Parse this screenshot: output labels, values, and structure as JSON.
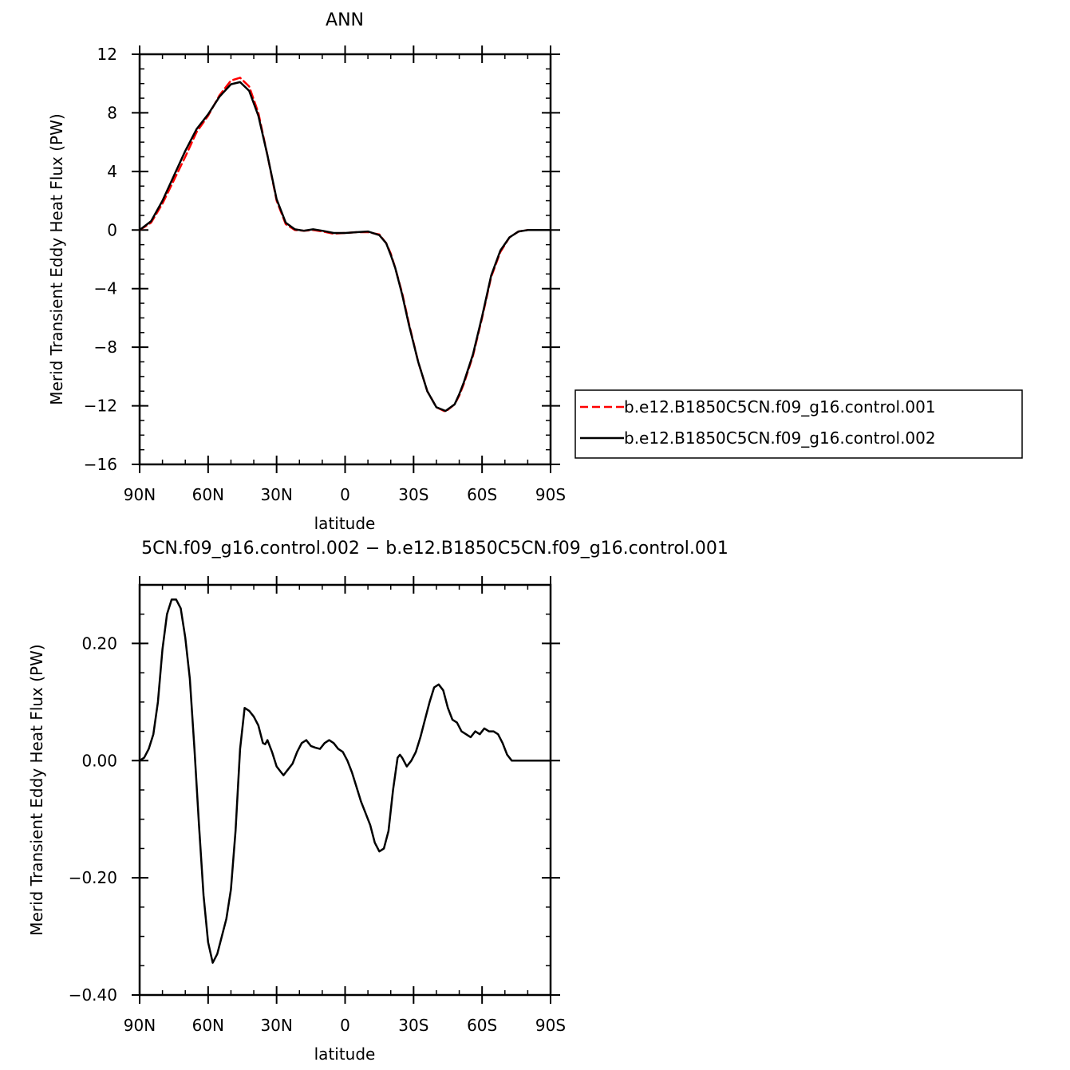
{
  "chart_data": [
    {
      "type": "line",
      "title": "ANN",
      "xlabel": "latitude",
      "ylabel": "Merid Transient Eddy Heat Flux (PW)",
      "xlim": [
        90,
        -90
      ],
      "ylim": [
        -16,
        12
      ],
      "xticks": [
        90,
        60,
        30,
        0,
        -30,
        -60,
        -90
      ],
      "xtick_labels": [
        "90N",
        "60N",
        "30N",
        "0",
        "30S",
        "60S",
        "90S"
      ],
      "yticks": [
        12,
        8,
        4,
        0,
        -4,
        -8,
        -12,
        -16
      ],
      "ytick_labels": [
        "12",
        "8",
        "4",
        "0",
        "−4",
        "−8",
        "−12",
        "−16"
      ],
      "y_minor_step": 1,
      "x_minor_step": 10,
      "legend_position": "right",
      "series": [
        {
          "name": "b.e12.B1850C5CN.f09_g16.control.001",
          "color": "#ff0000",
          "dash": "dashed",
          "x": [
            90,
            85,
            80,
            75,
            70,
            65,
            60,
            55,
            50,
            46,
            42,
            38,
            34,
            30,
            26,
            22,
            18,
            14,
            10,
            5,
            0,
            -5,
            -10,
            -15,
            -18,
            -20,
            -22,
            -25,
            -28,
            -32,
            -36,
            -40,
            -44,
            -48,
            -50,
            -52,
            -56,
            -60,
            -64,
            -68,
            -72,
            -76,
            -80,
            -85,
            -90
          ],
          "y": [
            0,
            0.5,
            1.8,
            3.4,
            5.0,
            6.7,
            7.8,
            9.2,
            10.2,
            10.4,
            9.8,
            8.0,
            5.1,
            2.0,
            0.4,
            0,
            -0.05,
            0,
            -0.1,
            -0.25,
            -0.2,
            -0.15,
            -0.15,
            -0.3,
            -0.9,
            -1.6,
            -2.6,
            -4.3,
            -6.4,
            -9.0,
            -11.0,
            -12.1,
            -12.4,
            -11.9,
            -11.3,
            -10.5,
            -8.6,
            -6.0,
            -3.2,
            -1.5,
            -0.5,
            -0.1,
            0,
            0,
            0
          ]
        },
        {
          "name": "b.e12.B1850C5CN.f09_g16.control.002",
          "color": "#000000",
          "dash": "solid",
          "x": [
            90,
            85,
            80,
            75,
            70,
            65,
            60,
            55,
            50,
            46,
            42,
            38,
            34,
            30,
            26,
            22,
            18,
            14,
            10,
            5,
            0,
            -5,
            -10,
            -15,
            -18,
            -20,
            -22,
            -25,
            -28,
            -32,
            -36,
            -40,
            -44,
            -48,
            -50,
            -52,
            -56,
            -60,
            -64,
            -68,
            -72,
            -76,
            -80,
            -85,
            -90
          ],
          "y": [
            0,
            0.6,
            2.0,
            3.7,
            5.4,
            6.9,
            7.9,
            9.1,
            9.95,
            10.1,
            9.5,
            7.8,
            5.1,
            2.1,
            0.5,
            0.05,
            -0.05,
            0.05,
            -0.05,
            -0.2,
            -0.2,
            -0.15,
            -0.1,
            -0.35,
            -0.9,
            -1.7,
            -2.6,
            -4.4,
            -6.5,
            -9.0,
            -11.0,
            -12.1,
            -12.35,
            -11.9,
            -11.2,
            -10.4,
            -8.5,
            -5.9,
            -3.1,
            -1.4,
            -0.5,
            -0.1,
            0,
            0,
            0
          ]
        }
      ]
    },
    {
      "type": "line",
      "title": "5CN.f09_g16.control.002 − b.e12.B1850C5CN.f09_g16.control.001",
      "xlabel": "latitude",
      "ylabel": "Merid Transient Eddy Heat Flux (PW)",
      "xlim": [
        90,
        -90
      ],
      "ylim": [
        -0.4,
        0.3
      ],
      "xticks": [
        90,
        60,
        30,
        0,
        -30,
        -60,
        -90
      ],
      "xtick_labels": [
        "90N",
        "60N",
        "30N",
        "0",
        "30S",
        "60S",
        "90S"
      ],
      "yticks": [
        0.2,
        0.0,
        -0.2,
        -0.4
      ],
      "ytick_labels": [
        "0.20",
        "0.00",
        "−0.20",
        "−0.40"
      ],
      "y_minor_step": 0.05,
      "x_minor_step": 10,
      "series": [
        {
          "name": "",
          "color": "#000000",
          "dash": "solid",
          "x": [
            90,
            88,
            86,
            84,
            82,
            80,
            78,
            76,
            74,
            72,
            70,
            68,
            66,
            64,
            62,
            60,
            58,
            56,
            54,
            52,
            50,
            48,
            46,
            44,
            42,
            40,
            38,
            36,
            35,
            34,
            32,
            30,
            28,
            27,
            26,
            25,
            23,
            21,
            19,
            17,
            15,
            13,
            11,
            9,
            7,
            5,
            3,
            1,
            -1,
            -3,
            -5,
            -7,
            -9,
            -11,
            -13,
            -15,
            -17,
            -19,
            -21,
            -23,
            -24,
            -25,
            -27,
            -29,
            -31,
            -33,
            -35,
            -37,
            -39,
            -41,
            -43,
            -45,
            -47,
            -49,
            -51,
            -53,
            -55,
            -57,
            -59,
            -61,
            -63,
            -65,
            -67,
            -69,
            -71,
            -73,
            -75,
            -77,
            -79,
            -81,
            -83,
            -85,
            -87,
            -90
          ],
          "y": [
            0,
            0.005,
            0.02,
            0.045,
            0.1,
            0.19,
            0.25,
            0.275,
            0.275,
            0.26,
            0.21,
            0.14,
            0.02,
            -0.11,
            -0.23,
            -0.31,
            -0.345,
            -0.33,
            -0.3,
            -0.27,
            -0.22,
            -0.12,
            0.02,
            0.09,
            0.085,
            0.075,
            0.06,
            0.03,
            0.028,
            0.035,
            0.015,
            -0.01,
            -0.02,
            -0.025,
            -0.02,
            -0.015,
            -0.005,
            0.015,
            0.03,
            0.035,
            0.025,
            0.022,
            0.02,
            0.03,
            0.035,
            0.03,
            0.02,
            0.015,
            0.0,
            -0.02,
            -0.045,
            -0.07,
            -0.09,
            -0.11,
            -0.14,
            -0.155,
            -0.15,
            -0.12,
            -0.05,
            0.005,
            0.01,
            0.005,
            -0.01,
            0.0,
            0.015,
            0.04,
            0.07,
            0.1,
            0.125,
            0.13,
            0.12,
            0.09,
            0.07,
            0.065,
            0.05,
            0.045,
            0.04,
            0.05,
            0.045,
            0.055,
            0.05,
            0.05,
            0.045,
            0.03,
            0.01,
            0.0,
            0,
            0,
            0,
            0,
            0,
            0,
            0,
            0
          ]
        }
      ]
    }
  ]
}
